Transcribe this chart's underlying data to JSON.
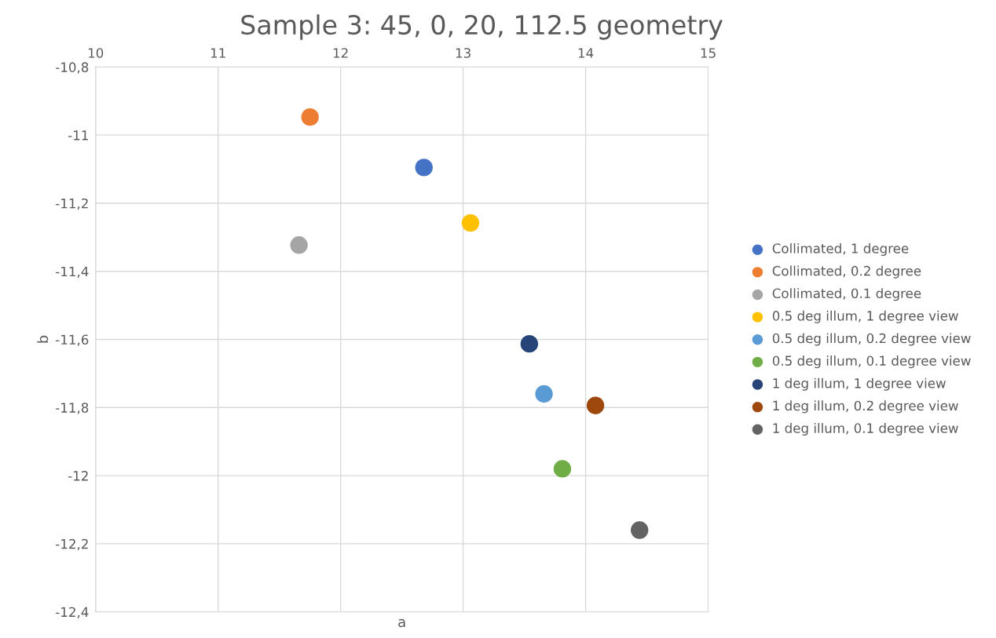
{
  "chart_data": {
    "type": "scatter",
    "title": "Sample 3: 45, 0, 20, 112.5 geometry",
    "xlabel": "a",
    "ylabel": "b",
    "xlim": [
      10,
      15
    ],
    "xticks": [
      10,
      11,
      12,
      13,
      14,
      15
    ],
    "ylim": [
      -12.4,
      -10.8
    ],
    "yticks": [
      {
        "value": -12.4,
        "label": "-12,4"
      },
      {
        "value": -12.2,
        "label": "-12,2"
      },
      {
        "value": -12,
        "label": "-12"
      },
      {
        "value": -11.8,
        "label": "-11,8"
      },
      {
        "value": -11.6,
        "label": "-11,6"
      },
      {
        "value": -11.4,
        "label": "-11,4"
      },
      {
        "value": -11.2,
        "label": "-11,2"
      },
      {
        "value": -11,
        "label": "-11"
      },
      {
        "value": -10.8,
        "label": "-10,8"
      }
    ],
    "grid": true,
    "legend": "right",
    "marker": "circle",
    "series": [
      {
        "name": "Collimated, 1 degree",
        "color": "#4472c4",
        "x": [
          12.68
        ],
        "values": [
          -11.095
        ]
      },
      {
        "name": "Collimated, 0.2 degree",
        "color": "#ed7d31",
        "x": [
          11.75
        ],
        "values": [
          -10.947
        ]
      },
      {
        "name": "Collimated, 0.1 degree",
        "color": "#a5a5a5",
        "x": [
          11.66
        ],
        "values": [
          -11.323
        ]
      },
      {
        "name": "0.5 deg illum, 1 degree view",
        "color": "#ffc000",
        "x": [
          13.06
        ],
        "values": [
          -11.258
        ]
      },
      {
        "name": "0.5 deg illum, 0.2 degree view",
        "color": "#5b9bd5",
        "x": [
          13.66
        ],
        "values": [
          -11.76
        ]
      },
      {
        "name": "0.5 deg illum, 0.1 degree view",
        "color": "#70ad47",
        "x": [
          13.81
        ],
        "values": [
          -11.98
        ]
      },
      {
        "name": "1 deg illum, 1 degree view",
        "color": "#264478",
        "x": [
          13.54
        ],
        "values": [
          -11.613
        ]
      },
      {
        "name": "1 deg illum, 0.2 degree view",
        "color": "#9e480e",
        "x": [
          14.08
        ],
        "values": [
          -11.794
        ]
      },
      {
        "name": "1 deg illum, 0.1 degree view",
        "color": "#636363",
        "x": [
          14.44
        ],
        "values": [
          -12.16
        ]
      }
    ]
  }
}
